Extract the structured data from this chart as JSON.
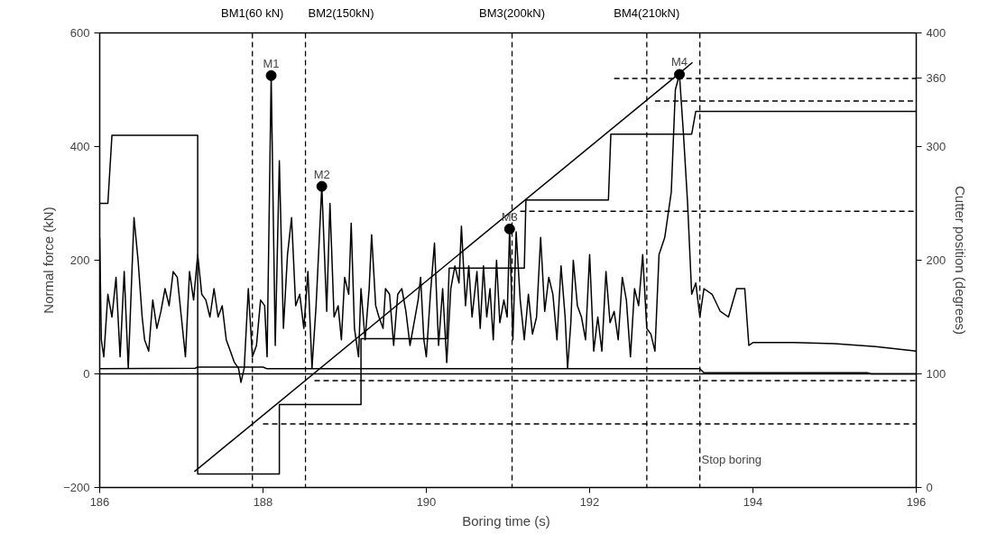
{
  "chart_data": {
    "type": "line",
    "xlabel": "Boring time  (s)",
    "ylabel": "Normal force (kN)",
    "y2label": "Cutter position (degrees)",
    "xlim": [
      186,
      196
    ],
    "xticks": [
      186,
      188,
      190,
      192,
      194,
      196
    ],
    "ylim": [
      -200,
      600
    ],
    "yticks": [
      -200,
      0,
      200,
      400,
      600
    ],
    "y2lim": [
      0,
      400
    ],
    "y2ticks": [
      0,
      100,
      200,
      300,
      360,
      400
    ],
    "grid": false,
    "line_style": "solid",
    "series": [
      {
        "color": "#000000",
        "x": [
          186.0,
          186.02,
          186.05,
          186.1,
          186.15,
          186.2,
          186.25,
          186.3,
          186.35,
          186.42,
          186.47,
          186.52,
          186.55,
          186.6,
          186.65,
          186.7,
          186.75,
          186.8,
          186.85,
          186.9,
          186.95,
          187.0,
          187.05,
          187.1,
          187.15,
          187.2,
          187.25,
          187.3,
          187.35,
          187.4,
          187.45,
          187.5,
          187.55,
          187.6,
          187.65,
          187.7,
          187.73,
          187.77,
          187.82,
          187.87,
          187.92,
          187.97,
          188.02,
          188.05,
          188.1,
          188.15,
          188.2,
          188.25,
          188.3,
          188.35,
          188.4,
          188.45,
          188.5,
          188.55,
          188.6,
          188.65,
          188.72,
          188.78,
          188.82,
          188.87,
          188.92,
          188.96,
          189.0,
          189.05,
          189.08,
          189.12,
          189.17,
          189.2,
          189.25,
          189.3,
          189.33,
          189.38,
          189.42,
          189.47,
          189.5,
          189.55,
          189.6,
          189.65,
          189.7,
          189.75,
          189.8,
          189.85,
          189.9,
          189.93,
          189.97,
          190.0,
          190.05,
          190.1,
          190.15,
          190.2,
          190.25,
          190.3,
          190.35,
          190.4,
          190.43,
          190.48,
          190.52,
          190.56,
          190.62,
          190.66,
          190.7,
          190.74,
          190.78,
          190.82,
          190.86,
          190.9,
          190.95,
          190.99,
          191.02,
          191.06,
          191.1,
          191.15,
          191.2,
          191.25,
          191.3,
          191.35,
          191.4,
          191.45,
          191.5,
          191.55,
          191.6,
          191.65,
          191.7,
          191.73,
          191.77,
          191.8,
          191.85,
          191.9,
          191.95,
          192.0,
          192.05,
          192.1,
          192.15,
          192.2,
          192.25,
          192.3,
          192.35,
          192.4,
          192.45,
          192.5,
          192.55,
          192.6,
          192.65,
          192.7,
          192.75,
          192.8,
          192.85,
          192.92,
          193.0,
          193.05,
          193.1,
          193.15,
          193.2,
          193.25,
          193.3,
          193.35,
          193.4,
          193.5,
          193.6,
          193.7,
          193.8,
          193.9,
          193.95,
          194.0,
          194.5,
          195.0,
          195.5,
          196.0
        ],
        "values": [
          240,
          60,
          30,
          140,
          100,
          170,
          30,
          180,
          10,
          275,
          200,
          100,
          60,
          40,
          130,
          80,
          110,
          150,
          120,
          180,
          170,
          100,
          30,
          180,
          130,
          210,
          140,
          130,
          100,
          150,
          100,
          120,
          60,
          40,
          20,
          10,
          -15,
          10,
          150,
          30,
          50,
          130,
          120,
          30,
          525,
          50,
          375,
          80,
          210,
          275,
          120,
          140,
          80,
          180,
          10,
          120,
          330,
          110,
          300,
          100,
          120,
          60,
          170,
          140,
          265,
          80,
          30,
          150,
          60,
          150,
          245,
          120,
          100,
          80,
          150,
          140,
          50,
          140,
          150,
          110,
          50,
          90,
          130,
          170,
          60,
          30,
          140,
          230,
          50,
          150,
          20,
          150,
          190,
          160,
          260,
          120,
          190,
          100,
          180,
          80,
          190,
          100,
          150,
          60,
          200,
          90,
          130,
          100,
          255,
          60,
          250,
          130,
          60,
          140,
          70,
          100,
          240,
          110,
          170,
          140,
          60,
          190,
          100,
          10,
          90,
          200,
          120,
          100,
          60,
          210,
          40,
          100,
          40,
          180,
          90,
          110,
          60,
          170,
          130,
          30,
          150,
          120,
          210,
          80,
          70,
          40,
          210,
          240,
          320,
          500,
          527,
          420,
          300,
          140,
          160,
          100,
          150,
          140,
          110,
          100,
          150,
          150,
          50,
          55,
          55,
          53,
          48,
          40
        ]
      },
      {
        "type": "line",
        "color": "#000000",
        "axis": "y2",
        "x": [
          186.0,
          186.1,
          186.15,
          187.2,
          187.2,
          188.2,
          188.2,
          189.2,
          189.2,
          190.25,
          190.28,
          191.2,
          191.22,
          192.23,
          192.26,
          193.25,
          193.3,
          196.0
        ],
        "values": [
          250,
          250,
          310,
          310,
          12,
          12,
          73,
          73,
          131,
          131,
          193,
          193,
          253,
          253,
          311,
          311,
          331,
          331
        ]
      },
      {
        "type": "line",
        "color": "#000000",
        "axis": "y2",
        "x": [
          187.16,
          193.26
        ],
        "values": [
          14,
          374
        ]
      },
      {
        "type": "line",
        "color": "#000000",
        "x": [
          186.0,
          187.17,
          187.2,
          188.0,
          188.05,
          193.35,
          193.4,
          195.4,
          195.45,
          196.0
        ],
        "values": [
          9,
          10,
          12,
          12,
          9,
          9,
          2,
          2,
          0,
          0
        ]
      },
      {
        "type": "line",
        "color": "#000000",
        "axis": "y2",
        "line_style": "dashed",
        "x": [
          192.3,
          196.0
        ],
        "values": [
          360,
          360
        ]
      },
      {
        "type": "line",
        "color": "#000000",
        "axis": "y2",
        "line_style": "dashed",
        "x": [
          192.8,
          196.0
        ],
        "values": [
          340,
          340
        ]
      },
      {
        "type": "line",
        "color": "#000000",
        "axis": "y2",
        "line_style": "dashed",
        "x": [
          191.15,
          196.0
        ],
        "values": [
          243,
          243
        ]
      },
      {
        "type": "line",
        "color": "#000000",
        "axis": "y2",
        "line_style": "dashed",
        "x": [
          188.63,
          196.0
        ],
        "values": [
          94,
          94
        ]
      },
      {
        "type": "line",
        "color": "#000000",
        "axis": "y2",
        "line_style": "dashed",
        "x": [
          188.0,
          196.0
        ],
        "values": [
          56,
          56
        ]
      },
      {
        "type": "scatter",
        "color": "#000000",
        "marker": "circle",
        "x": [
          188.1,
          188.72,
          191.02,
          193.1
        ],
        "values": [
          525,
          330,
          255,
          527
        ]
      }
    ],
    "ref_lines": [
      {
        "axis": "y",
        "value": 0,
        "color": "#000000",
        "line_style": "solid"
      },
      {
        "axis": "x",
        "value": 187.87,
        "label": "BM1(60 kN)",
        "color": "#000000",
        "line_style": "dashed"
      },
      {
        "axis": "x",
        "value": 188.52,
        "label": "BM2(150kN)",
        "color": "#000000",
        "line_style": "dashed"
      },
      {
        "axis": "x",
        "value": 191.05,
        "label": "BM3(200kN)",
        "color": "#000000",
        "line_style": "dashed"
      },
      {
        "axis": "x",
        "value": 192.7,
        "label": "BM4(210kN)",
        "color": "#000000",
        "line_style": "dashed"
      },
      {
        "axis": "x",
        "value": 193.35,
        "color": "#000000",
        "line_style": "dashed"
      }
    ],
    "annotations": [
      {
        "text": "M1",
        "x": 188.1,
        "y": 525
      },
      {
        "text": "M2",
        "x": 188.72,
        "y": 330
      },
      {
        "text": "M3",
        "x": 191.02,
        "y": 255
      },
      {
        "text": "M4",
        "x": 193.1,
        "y": 527
      },
      {
        "text": "Stop boring",
        "x": 193.37,
        "y": -150
      }
    ]
  }
}
